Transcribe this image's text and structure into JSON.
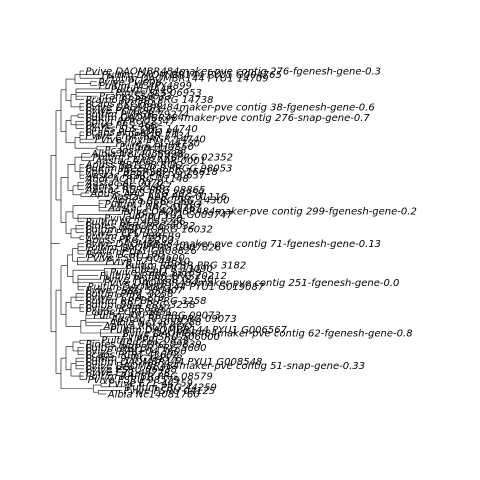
{
  "tree": {
    "leaves": [
      "Pvive DAOMBR484maker-pve contig 276-fgenesh-gene-0.3",
      "Pultim DAOM BR144 PYU1 G004765",
      "Pultim DAOMBR144 PYU1 14709",
      "Pvive Pvi006",
      "Pultim NC4PY4899",
      "Pultim NA46",
      "Pinfes SLS 06953",
      "Pramo SS0073",
      "Pramo RRPBR PRG 14738",
      "Pcaps PKCFRA8",
      "Pvive DAOMBR484maker-pve contig 38-fgenesh-gene-0.6",
      "Pvive PCH3S04",
      "Pultim PVRCB-79274",
      "Pultim DAOMBR484maker-pve contig 276-snap-gene-0.7",
      "Pphyt PFRG02347",
      "Pvive PRS 468",
      "Pinfes SLS ORG 14740",
      "Pcaps PHGAMO PH",
      "Pvive PhyPRGR 7434",
      "Pvive PhyPRGR 14740",
      "Pvive E71-44730",
      "Pultim PHUS50",
      "Pcaps PPF44258",
      "Albia Nc14055998",
      "Pultim PHSWRR0PRG 02352",
      "Aastac AAG AAR 0001",
      "Apuss RRTLPR ROO",
      "Pultim PBSSAC8 PRGG 98053",
      "Pphyt PBSSRS8PRG 16618",
      "Aastac RERCPRG 00637",
      "Ahdr ACRPRG 01148",
      "Aastac AL 0070",
      "Aanis PRG 21467",
      "Aastac RERCPRG 08865",
      "Apuss AAG PRG 20259",
      "Aastac AAR PRG 01116",
      "Aphya RERCPRG 14300",
      "Pultim PHRPCHPRG",
      "Aastac AAG 01167",
      "Pvive DAOMBR484maker-pve contig 299-fgenesh-gene-0.2",
      "Pultim PYU1 G009747",
      "Pvive PCPU 120",
      "Pultim NC14055266",
      "Pinfes RERCPRG 6032",
      "Pultim RRPBR PRG 16032",
      "Pvive PCPU 132",
      "Pultim 5F3 PBRFR9",
      "Apuss PRG 10203",
      "Pvive DAOMBR484maker-pve contig 71-fgenesh-gene-0.13",
      "Pultim DAOMPRG G007826",
      "Pultim PYU1 G008826",
      "Pvive PCHP 100",
      "Pvive PSRU 604600",
      "Pvive E71-44610",
      "Pultim RRPBR PRG 3182",
      "Pinfes PPR 13090",
      "Pvive PSRU 33189",
      "Pultim RRPBR PRG 20212",
      "Pvive PhyPRGR 02130",
      "Pvive DAOMBR484maker-pve contig 251-fgenesh-gene-0.0",
      "Pultim DAOMBR144 PYU1 G019087",
      "Pvive PSRU 500407",
      "Pultim PPRL 3258",
      "Pvive PCRA 210",
      "Pultim RRPBR PRG 3258",
      "Pultim 88-4 PRG 3258",
      "Pvive PCPR 88A7",
      "Pcaps PCRP 5891",
      "Pultim RRPBR PRG 09073",
      "Aastac RPSRRPRG 09073",
      "Albia Nc14058288",
      "Aphya RRLM ROO",
      "Pultim DAOMBR144 PYU1 G006567",
      "Pvive DAOMBR484maker-pve contig 62-fgenesh-gene-0.8",
      "Pvive PSRU 506000",
      "Pultim PPRL 0839",
      "Pinfes RERCPRG 09839",
      "Pultim RRPBR PRG 5600",
      "Pvive PSRU 04 3600",
      "Pcaps PCRT 43602",
      "Pultim 9PRG 04578",
      "Pultim DAOMBR144 PYU1 G008548",
      "Pvive DAOMBR484maker-pve contig 51-snap-gene-0.33",
      "Pvive PSRU 06438",
      "Pvive E71-44778",
      "Pultim RRPBR PRG 08579",
      "Pvive PSRU 98579",
      "Pvive E71-44759",
      "Pultim PRG 44259",
      "Pvive PSRU 04125",
      "Albia Nc14081760"
    ]
  }
}
